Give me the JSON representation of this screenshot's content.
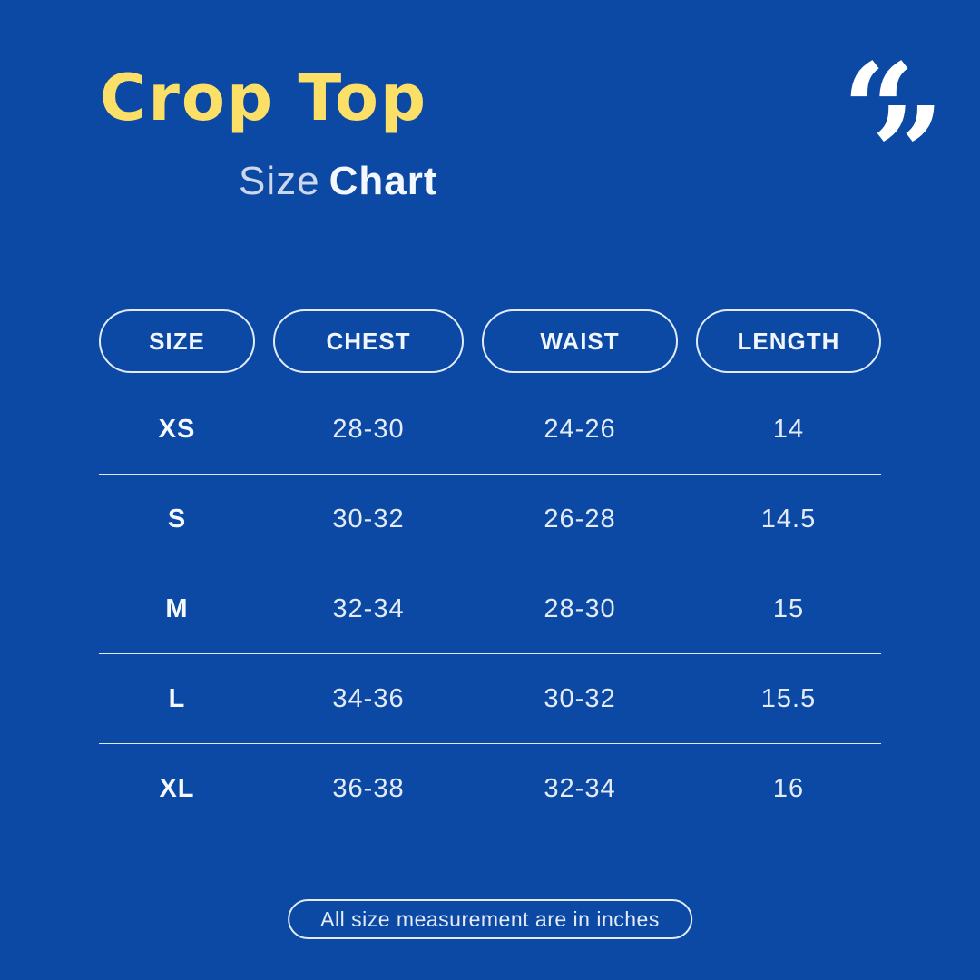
{
  "header": {
    "title": "Crop Top",
    "subtitle_regular": "Size",
    "subtitle_bold": "Chart",
    "quote_open": "“",
    "quote_close": "”"
  },
  "chart_data": {
    "type": "table",
    "title": "Crop Top Size Chart",
    "columns": [
      "SIZE",
      "CHEST",
      "WAIST",
      "LENGTH"
    ],
    "rows": [
      [
        "XS",
        "28-30",
        "24-26",
        "14"
      ],
      [
        "S",
        "30-32",
        "26-28",
        "14.5"
      ],
      [
        "M",
        "32-34",
        "28-30",
        "15"
      ],
      [
        "L",
        "34-36",
        "30-32",
        "15.5"
      ],
      [
        "XL",
        "36-38",
        "32-34",
        "16"
      ]
    ],
    "unit_note": "All size measurement are in inches"
  },
  "footer": {
    "note": "All size measurement are in inches"
  },
  "colors": {
    "background": "#0b49a5",
    "title_yellow": "#fbdf66",
    "subtitle_light": "#ccd7eb",
    "subtitle_bright": "#f4f7fc",
    "pill_border": "#e3ebf8",
    "header_text": "#f1f5fc",
    "cell_text": "#e4ebf7",
    "size_text": "#f5f8fd",
    "divider": "#dfe8f6",
    "quote_white": "#ffffff"
  }
}
